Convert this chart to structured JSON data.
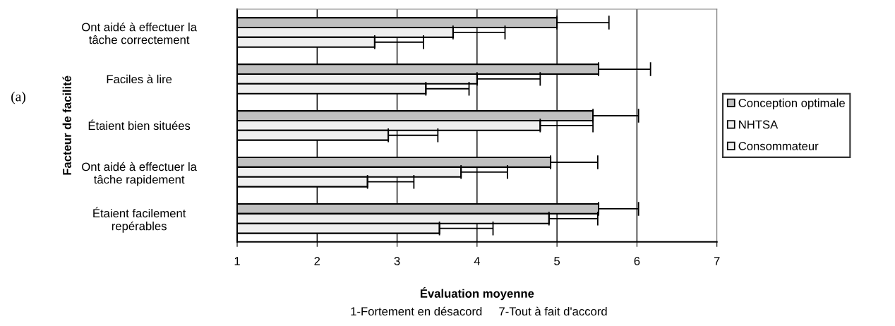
{
  "chart_data": {
    "type": "bar",
    "orientation": "horizontal",
    "xlabel": "Évaluation moyenne",
    "ylabel": "Facteur de facilité",
    "categories": [
      "Ont aidé à effectuer la\ntâche correctement",
      "Faciles à lire",
      "Étaient bien situées",
      "Ont aidé à effectuer la\ntâche rapidement",
      "Étaient facilement\nrepérables"
    ],
    "series": [
      {
        "name": "Conception optimale",
        "color": "#c0c0c0",
        "values": [
          5.0,
          5.52,
          5.45,
          4.92,
          5.52
        ],
        "errors": [
          [
            5.0,
            5.65
          ],
          [
            5.52,
            6.17
          ],
          [
            5.45,
            6.02
          ],
          [
            4.92,
            5.51
          ],
          [
            5.52,
            6.02
          ]
        ]
      },
      {
        "name": "NHTSA",
        "color": "#efefef",
        "values": [
          3.7,
          4.0,
          4.79,
          3.8,
          4.9
        ],
        "errors": [
          [
            3.7,
            4.35
          ],
          [
            4.0,
            4.79
          ],
          [
            4.79,
            5.45
          ],
          [
            3.8,
            4.38
          ],
          [
            4.9,
            5.51
          ]
        ]
      },
      {
        "name": "Consommateur",
        "color": "#efefef",
        "values": [
          2.72,
          3.36,
          2.89,
          2.63,
          3.53
        ],
        "errors": [
          [
            2.72,
            3.33
          ],
          [
            3.36,
            3.9
          ],
          [
            2.89,
            3.51
          ],
          [
            2.63,
            3.21
          ],
          [
            3.53,
            4.2
          ]
        ]
      }
    ],
    "xlim": [
      1,
      7
    ],
    "xticks": [
      1,
      2,
      3,
      4,
      5,
      6,
      7
    ],
    "grid": "x",
    "legend": "right",
    "annotations": [
      "(a)",
      "1-Fortement en désacord     7-Tout à fait d'accord"
    ]
  }
}
